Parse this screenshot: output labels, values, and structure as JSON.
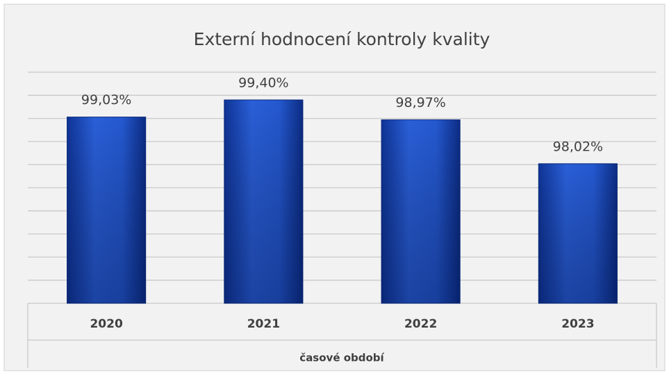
{
  "chart_data": {
    "type": "bar",
    "title": "Externí hodnocení kontroly kvality",
    "categories": [
      "2020",
      "2021",
      "2022",
      "2023"
    ],
    "values": [
      99.03,
      99.4,
      98.97,
      98.02
    ],
    "value_labels": [
      "99,03%",
      "99,40%",
      "98,97%",
      "98,02%"
    ],
    "color": "#1f4fc4",
    "x_label": "časové období",
    "ylim": [
      95,
      100
    ],
    "yticks": [
      95,
      95.5,
      96,
      96.5,
      97,
      97.5,
      98,
      98.5,
      99,
      99.5,
      100
    ],
    "grid": true
  }
}
